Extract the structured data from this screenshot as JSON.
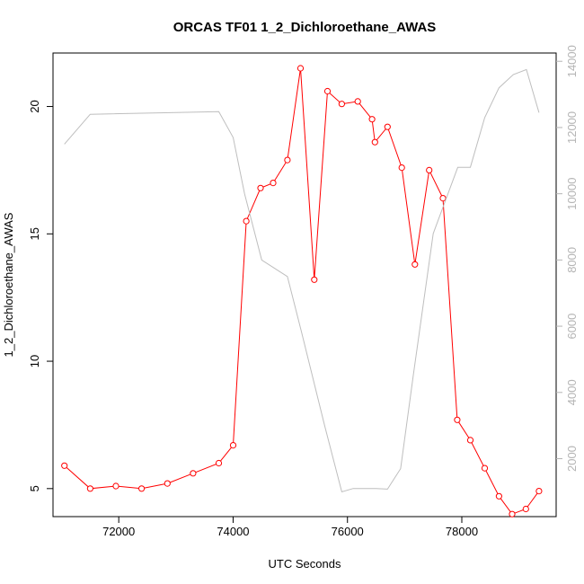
{
  "chart_data": {
    "type": "line",
    "title": "ORCAS TF01 1_2_Dichloroethane_AWAS",
    "xlabel": "UTC Seconds",
    "ylabel": "1_2_Dichloroethane_AWAS",
    "xlim": [
      70850,
      79650
    ],
    "ylim": [
      3.9,
      22.1
    ],
    "y2lim": [
      250,
      14250
    ],
    "x_ticks": [
      72000,
      74000,
      76000,
      78000
    ],
    "y_ticks": [
      5,
      10,
      15,
      20
    ],
    "y2_ticks": [
      2000,
      4000,
      6000,
      8000,
      10000,
      12000,
      14000
    ],
    "grid": false,
    "series": [
      {
        "axis": "left",
        "color": "#ff0000",
        "style": "line+points",
        "x": [
          71050,
          71500,
          71950,
          72400,
          72850,
          73300,
          73750,
          74000,
          74230,
          74480,
          74700,
          74950,
          75180,
          75420,
          75650,
          75900,
          76180,
          76430,
          76480,
          76700,
          76950,
          77180,
          77430,
          77670,
          77920,
          78150,
          78400,
          78650,
          78880,
          79120,
          79350
        ],
        "y": [
          5.9,
          5.0,
          5.1,
          5.0,
          5.2,
          5.6,
          6.0,
          6.7,
          15.5,
          16.8,
          17.0,
          17.9,
          21.5,
          13.2,
          20.6,
          20.1,
          20.2,
          19.5,
          18.6,
          19.2,
          17.6,
          13.8,
          17.5,
          16.4,
          7.7,
          6.9,
          5.8,
          4.7,
          4.0,
          4.2,
          4.9
        ]
      },
      {
        "axis": "right",
        "color": "#bebebe",
        "style": "line",
        "x": [
          71050,
          71500,
          73000,
          73750,
          74000,
          74200,
          74500,
          74950,
          75200,
          75600,
          75900,
          76100,
          76500,
          76700,
          76930,
          77150,
          77500,
          77930,
          78150,
          78400,
          78650,
          78900,
          79130,
          79350
        ],
        "y": [
          11500,
          12400,
          12450,
          12480,
          11700,
          10000,
          8000,
          7500,
          5800,
          3000,
          1000,
          1100,
          1100,
          1080,
          1700,
          4500,
          8800,
          10800,
          10800,
          12300,
          13200,
          13600,
          13750,
          12450
        ]
      }
    ]
  }
}
